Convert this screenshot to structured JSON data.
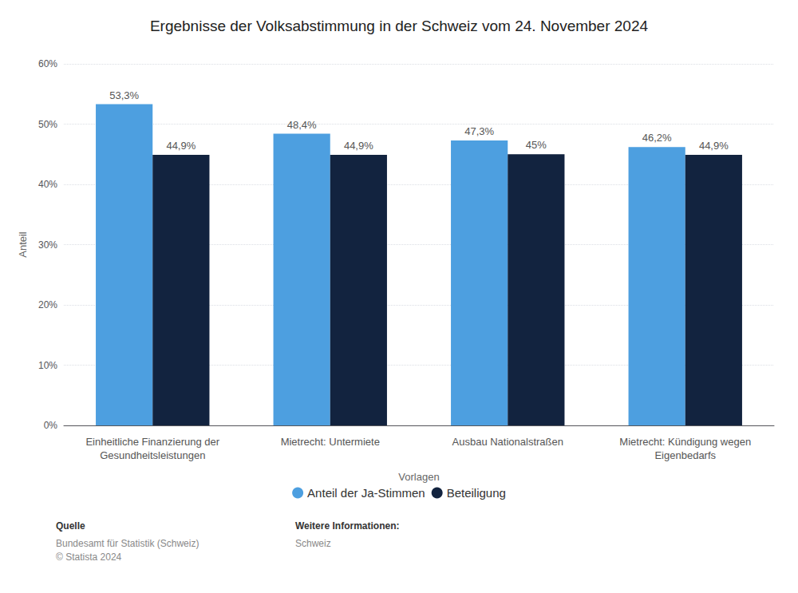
{
  "chart_data": {
    "type": "bar",
    "title": "Ergebnisse der Volksabstimmung in der Schweiz vom 24. November 2024",
    "categories": [
      "Einheitliche Finanzierung der\nGesundheitsleistungen",
      "Mietrecht: Untermiete",
      "Ausbau Nationalstraßen",
      "Mietrecht: Kündigung wegen\nEigenbedarfs"
    ],
    "series": [
      {
        "name": "Anteil der Ja-Stimmen",
        "color": "#4D9FE0",
        "values": [
          53.3,
          48.4,
          47.3,
          46.2
        ],
        "value_labels": [
          "53,3%",
          "48,4%",
          "47,3%",
          "46,2%"
        ]
      },
      {
        "name": "Beteiligung",
        "color": "#12233F",
        "values": [
          44.9,
          44.9,
          45.0,
          44.9
        ],
        "value_labels": [
          "44,9%",
          "44,9%",
          "45%",
          "44,9%"
        ]
      }
    ],
    "ylabel": "Anteil",
    "xlabel": "Vorlagen",
    "ylim": [
      0,
      60
    ],
    "yticks": [
      {
        "value": 0,
        "label": "0%"
      },
      {
        "value": 10,
        "label": "10%"
      },
      {
        "value": 20,
        "label": "20%"
      },
      {
        "value": 30,
        "label": "30%"
      },
      {
        "value": 40,
        "label": "40%"
      },
      {
        "value": 50,
        "label": "50%"
      },
      {
        "value": 60,
        "label": "60%"
      }
    ],
    "grid": true,
    "legend": "bottom",
    "data_labels": true,
    "annotations": [
      "Quelle",
      "Bundesamt für Statistik (Schweiz)\n© Statista 2024",
      "Weitere Informationen:",
      "Schweiz"
    ]
  }
}
